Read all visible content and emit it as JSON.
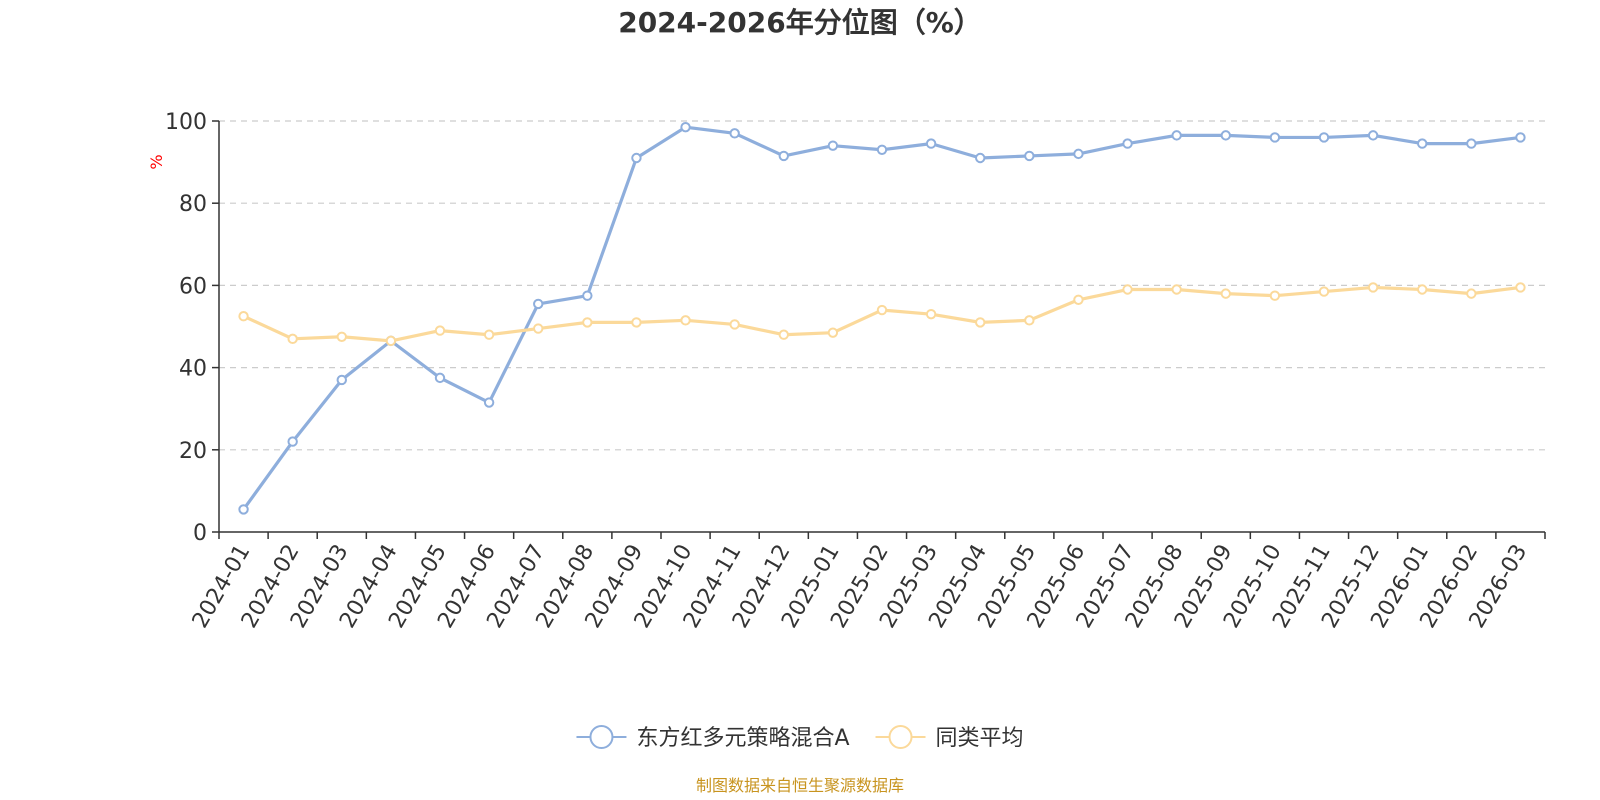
{
  "chart_data": {
    "type": "line",
    "title": "2024-2026年分位图（%）",
    "ylabel": "%",
    "ylim": [
      0,
      100
    ],
    "yticks": [
      0,
      20,
      40,
      60,
      80,
      100
    ],
    "grid": true,
    "legend_position": "bottom-center",
    "categories": [
      "2024-01",
      "2024-02",
      "2024-03",
      "2024-04",
      "2024-05",
      "2024-06",
      "2024-07",
      "2024-08",
      "2024-09",
      "2024-10",
      "2024-11",
      "2024-12",
      "2025-01",
      "2025-02",
      "2025-03",
      "2025-04",
      "2025-05",
      "2025-06",
      "2025-07",
      "2025-08",
      "2025-09",
      "2025-10",
      "2025-11",
      "2025-12",
      "2026-01",
      "2026-02",
      "2026-03"
    ],
    "series": [
      {
        "name": "东方红多元策略混合A",
        "color": "#8eaedc",
        "values": [
          5.5,
          22,
          37,
          46.5,
          37.5,
          31.5,
          55.5,
          57.5,
          91,
          98.5,
          97,
          91.5,
          94,
          93,
          94.5,
          91,
          91.5,
          92,
          94.5,
          96.5,
          96.5,
          96,
          96,
          96.5,
          94.5,
          94.5,
          96
        ]
      },
      {
        "name": "同类平均",
        "color": "#fbd99a",
        "values": [
          52.5,
          47,
          47.5,
          46.5,
          49,
          48,
          49.5,
          51,
          51,
          51.5,
          50.5,
          48,
          48.5,
          54,
          53,
          51,
          51.5,
          56.5,
          59,
          59,
          58,
          57.5,
          58.5,
          59.5,
          59,
          58,
          59.5
        ]
      }
    ]
  },
  "source_note": "制图数据来自恒生聚源数据库",
  "colors": {
    "axis": "#333333",
    "grid": "#cccccc",
    "unit_label": "#ff0000",
    "source_note": "#c8941f"
  }
}
